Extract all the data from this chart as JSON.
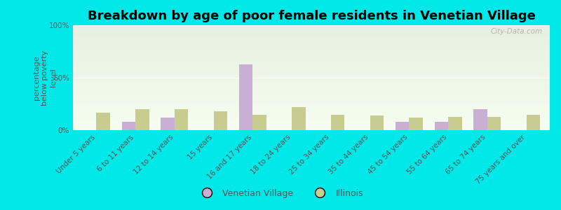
{
  "title": "Breakdown by age of poor female residents in Venetian Village",
  "categories": [
    "Under 5 years",
    "6 to 11 years",
    "12 to 14 years",
    "15 years",
    "16 and 17 years",
    "18 to 24 years",
    "25 to 34 years",
    "35 to 44 years",
    "45 to 54 years",
    "55 to 64 years",
    "65 to 74 years",
    "75 years and over"
  ],
  "venetian_village": [
    0,
    8,
    12,
    0,
    63,
    0,
    0,
    0,
    8,
    8,
    20,
    0
  ],
  "illinois": [
    17,
    20,
    20,
    18,
    15,
    22,
    15,
    14,
    12,
    13,
    13,
    15
  ],
  "vv_color": "#c9afd4",
  "il_color": "#c8cc90",
  "bg_color": "#00e8e8",
  "plot_bg_top": "#e6efe0",
  "plot_bg_bottom": "#f5fdf0",
  "ylabel": "percentage\nbelow poverty\nlevel",
  "ylim": [
    0,
    100
  ],
  "yticks": [
    0,
    50,
    100
  ],
  "ytick_labels": [
    "0%",
    "50%",
    "100%"
  ],
  "bar_width": 0.35,
  "legend_vv": "Venetian Village",
  "legend_il": "Illinois",
  "title_fontsize": 13,
  "axis_label_fontsize": 8,
  "tick_fontsize": 7.5,
  "label_color": "#555555",
  "watermark": "City-Data.com"
}
